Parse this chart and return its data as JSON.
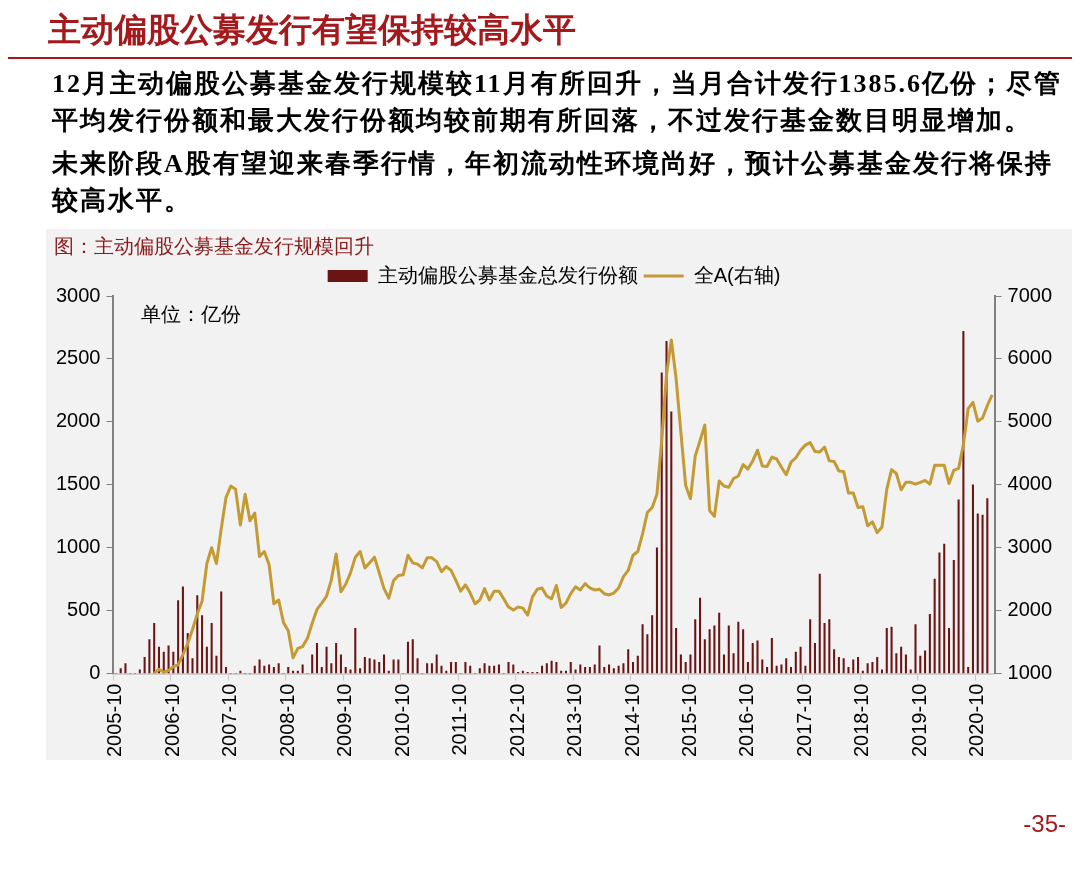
{
  "chart_data": {
    "type": "bar",
    "title": "主动偏股公募发行有望保持较高水平",
    "subtitle": "图：主动偏股公募基金发行规模回升",
    "annotations": [
      "12月主动偏股公募基金发行规模较11月有所回升，当月合计发行1385.6亿份；尽管平均发行份额和最大发行份额均较前期有所回落，不过发行基金数目明显增加。",
      "未来阶段A股有望迎来春季行情，年初流动性环境尚好，预计公募基金发行将保持较高水平。",
      "单位：亿份",
      "-35-"
    ],
    "categories": [
      "2005-10",
      null,
      null,
      null,
      null,
      null,
      null,
      null,
      null,
      null,
      null,
      null,
      "2006-10",
      null,
      null,
      null,
      null,
      null,
      null,
      null,
      null,
      null,
      null,
      null,
      "2007-10",
      null,
      null,
      null,
      null,
      null,
      null,
      null,
      null,
      null,
      null,
      null,
      "2008-10",
      null,
      null,
      null,
      null,
      null,
      null,
      null,
      null,
      null,
      null,
      null,
      "2009-10",
      null,
      null,
      null,
      null,
      null,
      null,
      null,
      null,
      null,
      null,
      null,
      "2010-10",
      null,
      null,
      null,
      null,
      null,
      null,
      null,
      null,
      null,
      null,
      null,
      "2011-10",
      null,
      null,
      null,
      null,
      null,
      null,
      null,
      null,
      null,
      null,
      null,
      "2012-10",
      null,
      null,
      null,
      null,
      null,
      null,
      null,
      null,
      null,
      null,
      null,
      "2013-10",
      null,
      null,
      null,
      null,
      null,
      null,
      null,
      null,
      null,
      null,
      null,
      "2014-10",
      null,
      null,
      null,
      null,
      null,
      null,
      null,
      null,
      null,
      null,
      null,
      "2015-10",
      null,
      null,
      null,
      null,
      null,
      null,
      null,
      null,
      null,
      null,
      null,
      "2016-10",
      null,
      null,
      null,
      null,
      null,
      null,
      null,
      null,
      null,
      null,
      null,
      "2017-10",
      null,
      null,
      null,
      null,
      null,
      null,
      null,
      null,
      null,
      null,
      null,
      "2018-10",
      null,
      null,
      null,
      null,
      null,
      null,
      null,
      null,
      null,
      null,
      null,
      "2019-10",
      null,
      null,
      null,
      null,
      null,
      null,
      null,
      null,
      null,
      null,
      null,
      "2020-10",
      null,
      null,
      null
    ],
    "series": [
      {
        "name": "主动偏股公募基金总发行份额",
        "color": "#6b1414",
        "values": [
          0,
          40,
          80,
          0,
          0,
          30,
          130,
          270,
          400,
          210,
          170,
          220,
          170,
          580,
          690,
          320,
          120,
          620,
          460,
          210,
          400,
          140,
          650,
          50,
          0,
          0,
          20,
          0,
          0,
          60,
          110,
          60,
          70,
          50,
          80,
          0,
          50,
          20,
          20,
          70,
          0,
          150,
          240,
          50,
          210,
          80,
          240,
          150,
          50,
          30,
          360,
          40,
          130,
          120,
          110,
          90,
          150,
          20,
          110,
          110,
          0,
          250,
          270,
          120,
          0,
          80,
          80,
          150,
          60,
          20,
          90,
          90,
          0,
          90,
          60,
          0,
          40,
          80,
          60,
          60,
          70,
          0,
          90,
          70,
          10,
          20,
          10,
          10,
          10,
          60,
          80,
          100,
          90,
          20,
          20,
          90,
          30,
          70,
          50,
          50,
          70,
          220,
          50,
          70,
          40,
          60,
          80,
          190,
          90,
          140,
          390,
          310,
          460,
          1000,
          2390,
          2640,
          2080,
          360,
          150,
          90,
          150,
          430,
          600,
          270,
          350,
          380,
          480,
          150,
          380,
          160,
          410,
          350,
          90,
          240,
          260,
          110,
          50,
          280,
          60,
          70,
          120,
          50,
          170,
          210,
          60,
          430,
          240,
          790,
          400,
          430,
          190,
          130,
          120,
          50,
          110,
          130,
          20,
          80,
          90,
          130,
          30,
          360,
          370,
          160,
          210,
          150,
          30,
          390,
          140,
          180,
          470,
          750,
          960,
          1030,
          360,
          900,
          1380,
          2720,
          50,
          1500,
          1270,
          1260,
          1390,
          null
        ]
      },
      {
        "type": "line",
        "name": "全A(右轴)",
        "color": "#c39a34",
        "axis": "y2",
        "values": [
          null,
          null,
          null,
          null,
          null,
          null,
          null,
          null,
          1000,
          1070,
          1020,
          1050,
          1110,
          1140,
          1300,
          1480,
          1700,
          1950,
          2150,
          2750,
          3000,
          2750,
          3300,
          3800,
          3980,
          3930,
          3360,
          3850,
          3430,
          3550,
          2860,
          2940,
          2730,
          2110,
          2170,
          1810,
          1680,
          1250,
          1400,
          1430,
          1560,
          1800,
          2020,
          2120,
          2230,
          2490,
          2900,
          2300,
          2420,
          2600,
          2850,
          2940,
          2680,
          2760,
          2850,
          2600,
          2350,
          2200,
          2480,
          2560,
          2570,
          2880,
          2760,
          2740,
          2680,
          2840,
          2840,
          2780,
          2620,
          2700,
          2640,
          2480,
          2310,
          2410,
          2280,
          2110,
          2170,
          2350,
          2170,
          2310,
          2310,
          2190,
          2060,
          2010,
          2060,
          2040,
          1930,
          2220,
          2340,
          2360,
          2230,
          2190,
          2400,
          2050,
          2120,
          2270,
          2380,
          2330,
          2430,
          2360,
          2330,
          2340,
          2270,
          2250,
          2280,
          2360,
          2540,
          2640,
          2880,
          2940,
          3220,
          3560,
          3640,
          3850,
          4700,
          5750,
          6300,
          5690,
          4830,
          3990,
          3780,
          4460,
          4700,
          4950,
          3590,
          3500,
          4060,
          3980,
          3960,
          4100,
          4140,
          4320,
          4250,
          4380,
          4550,
          4300,
          4290,
          4440,
          4410,
          4280,
          4160,
          4360,
          4430,
          4550,
          4630,
          4670,
          4530,
          4520,
          4600,
          4380,
          4370,
          4220,
          4210,
          3870,
          3870,
          3640,
          3650,
          3350,
          3410,
          3240,
          3330,
          3930,
          4240,
          4180,
          3920,
          4040,
          4040,
          4010,
          4040,
          4070,
          4010,
          4310,
          4310,
          4310,
          4020,
          4230,
          4260,
          4640,
          5210,
          5310,
          5010,
          5060,
          5260,
          5430
        ]
      }
    ],
    "ylim": [
      0,
      3000
    ],
    "yticks": [
      0,
      500,
      1000,
      1500,
      2000,
      2500,
      3000
    ],
    "y2lim": [
      1000,
      7000
    ],
    "y2ticks": [
      1000,
      2000,
      3000,
      4000,
      5000,
      6000,
      7000
    ],
    "legend": "top",
    "grid": false
  }
}
